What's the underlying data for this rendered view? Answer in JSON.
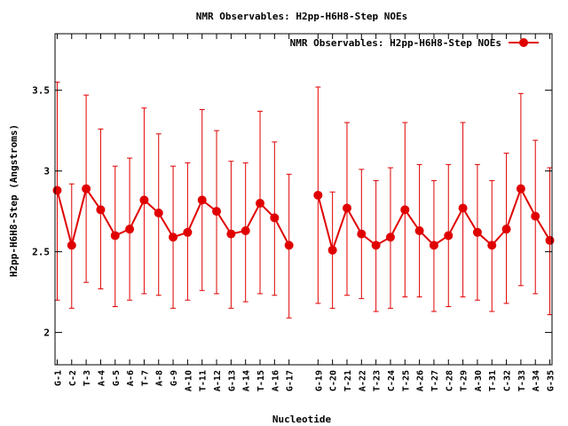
{
  "chart_data": {
    "type": "line",
    "title": "NMR Observables: H2pp-H6H8-Step NOEs",
    "xlabel": "Nucleotide",
    "ylabel": "H2pp-H6H8-Step (Angstroms)",
    "ylim": [
      1.8,
      3.85
    ],
    "yticks": [
      2,
      2.5,
      3,
      3.5
    ],
    "ytick_labels": [
      "2",
      "2.5",
      "3",
      "3.5"
    ],
    "grid": false,
    "legend_position": "top-right",
    "categories": [
      "G-1",
      "C-2",
      "T-3",
      "A-4",
      "G-5",
      "A-6",
      "T-7",
      "A-8",
      "G-9",
      "A-10",
      "T-11",
      "A-12",
      "G-13",
      "A-14",
      "T-15",
      "A-16",
      "G-17",
      "G-19",
      "C-20",
      "T-21",
      "A-22",
      "T-23",
      "C-24",
      "T-25",
      "A-26",
      "T-27",
      "C-28",
      "T-29",
      "A-30",
      "T-31",
      "C-32",
      "T-33",
      "A-34",
      "G-35"
    ],
    "x_positions": [
      1,
      2,
      3,
      4,
      5,
      6,
      7,
      8,
      9,
      10,
      11,
      12,
      13,
      14,
      15,
      16,
      17,
      19,
      20,
      21,
      22,
      23,
      24,
      25,
      26,
      27,
      28,
      29,
      30,
      31,
      32,
      33,
      34,
      35
    ],
    "series": [
      {
        "name": "NMR Observables: H2pp-H6H8-Step NOEs",
        "color": "#e00000",
        "marker": "circle",
        "segments": [
          [
            0,
            16
          ],
          [
            17,
            33
          ]
        ],
        "values": [
          2.88,
          2.54,
          2.89,
          2.76,
          2.6,
          2.64,
          2.82,
          2.74,
          2.59,
          2.62,
          2.82,
          2.75,
          2.61,
          2.63,
          2.8,
          2.71,
          2.54,
          2.85,
          2.51,
          2.77,
          2.61,
          2.54,
          2.59,
          2.76,
          2.63,
          2.54,
          2.6,
          2.77,
          2.62,
          2.54,
          2.64,
          2.89,
          2.72,
          2.57
        ],
        "err_low": [
          2.2,
          2.15,
          2.31,
          2.27,
          2.16,
          2.2,
          2.24,
          2.23,
          2.15,
          2.2,
          2.26,
          2.24,
          2.15,
          2.19,
          2.24,
          2.23,
          2.09,
          2.18,
          2.15,
          2.23,
          2.21,
          2.13,
          2.15,
          2.22,
          2.22,
          2.13,
          2.16,
          2.22,
          2.2,
          2.13,
          2.18,
          2.29,
          2.24,
          2.11
        ],
        "err_high": [
          3.55,
          2.92,
          3.47,
          3.26,
          3.03,
          3.08,
          3.39,
          3.23,
          3.03,
          3.05,
          3.38,
          3.25,
          3.06,
          3.05,
          3.37,
          3.18,
          2.98,
          3.52,
          2.87,
          3.3,
          3.01,
          2.94,
          3.02,
          3.3,
          3.04,
          2.94,
          3.04,
          3.3,
          3.04,
          2.94,
          3.11,
          3.48,
          3.19,
          3.02
        ]
      }
    ]
  }
}
